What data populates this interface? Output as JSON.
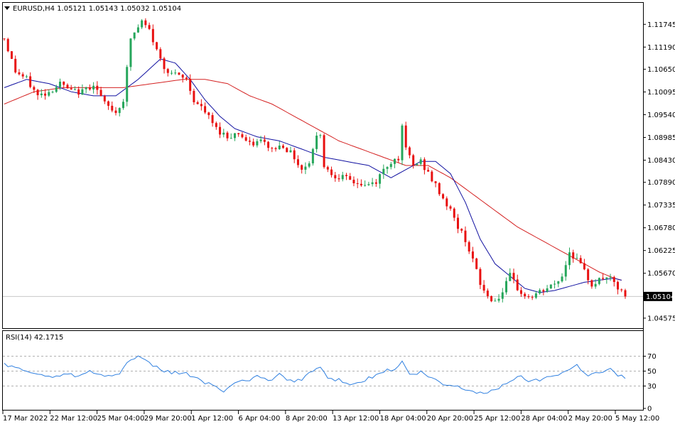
{
  "chart_data": [
    {
      "type": "candlestick",
      "symbol_header": "EURUSD,H4  1.05121 1.05143 1.05032 1.05104",
      "current_price_label": "1.05104",
      "current_price": 1.05104,
      "ylim": [
        1.044,
        1.122
      ],
      "y_ticks": [
        "1.11745",
        "1.11190",
        "1.10650",
        "1.10095",
        "1.09540",
        "1.08985",
        "1.08430",
        "1.07890",
        "1.07335",
        "1.06780",
        "1.06225",
        "1.05670",
        "1.04575"
      ],
      "x_tick_labels": [
        "17 Mar 2022",
        "22 Mar 12:00",
        "25 Mar 04:00",
        "29 Mar 20:00",
        "1 Apr 12:00",
        "6 Apr 04:00",
        "8 Apr 20:00",
        "13 Apr 12:00",
        "18 Apr 04:00",
        "20 Apr 20:00",
        "25 Apr 12:00",
        "28 Apr 04:00",
        "2 May 20:00",
        "5 May 12:00"
      ],
      "colors": {
        "bull": "#26a65b",
        "bear": "#e81010",
        "ma_fast": "#1010a0",
        "ma_slow": "#d42020"
      },
      "price_path": [
        [
          0,
          1.114
        ],
        [
          3,
          1.106
        ],
        [
          6,
          1.104
        ],
        [
          9,
          1.1
        ],
        [
          12,
          1.101
        ],
        [
          15,
          1.103
        ],
        [
          18,
          1.101
        ],
        [
          21,
          1.101
        ],
        [
          24,
          1.103
        ],
        [
          27,
          1.098
        ],
        [
          30,
          1.096
        ],
        [
          32,
          1.099
        ],
        [
          34,
          1.114
        ],
        [
          37,
          1.118
        ],
        [
          39,
          1.116
        ],
        [
          41,
          1.111
        ],
        [
          43,
          1.107
        ],
        [
          46,
          1.105
        ],
        [
          49,
          1.104
        ],
        [
          51,
          1.099
        ],
        [
          54,
          1.096
        ],
        [
          57,
          1.092
        ],
        [
          60,
          1.09
        ],
        [
          63,
          1.091
        ],
        [
          66,
          1.088
        ],
        [
          69,
          1.089
        ],
        [
          72,
          1.087
        ],
        [
          75,
          1.088
        ],
        [
          78,
          1.085
        ],
        [
          80,
          1.082
        ],
        [
          82,
          1.084
        ],
        [
          84,
          1.09
        ],
        [
          85,
          1.091
        ],
        [
          86,
          1.083
        ],
        [
          88,
          1.081
        ],
        [
          91,
          1.08
        ],
        [
          94,
          1.079
        ],
        [
          97,
          1.078
        ],
        [
          100,
          1.079
        ],
        [
          102,
          1.082
        ],
        [
          104,
          1.084
        ],
        [
          106,
          1.085
        ],
        [
          107,
          1.092
        ],
        [
          108,
          1.087
        ],
        [
          110,
          1.083
        ],
        [
          112,
          1.084
        ],
        [
          114,
          1.081
        ],
        [
          116,
          1.078
        ],
        [
          118,
          1.075
        ],
        [
          120,
          1.072
        ],
        [
          122,
          1.068
        ],
        [
          124,
          1.065
        ],
        [
          126,
          1.06
        ],
        [
          128,
          1.054
        ],
        [
          130,
          1.051
        ],
        [
          132,
          1.05
        ],
        [
          134,
          1.052
        ],
        [
          136,
          1.056
        ],
        [
          138,
          1.053
        ],
        [
          140,
          1.051
        ],
        [
          142,
          1.051
        ],
        [
          144,
          1.052
        ],
        [
          146,
          1.053
        ],
        [
          148,
          1.054
        ],
        [
          150,
          1.056
        ],
        [
          152,
          1.062
        ],
        [
          154,
          1.06
        ],
        [
          156,
          1.057
        ],
        [
          158,
          1.054
        ],
        [
          160,
          1.055
        ],
        [
          162,
          1.056
        ],
        [
          164,
          1.054
        ],
        [
          166,
          1.052
        ],
        [
          167,
          1.051
        ]
      ],
      "ma_fast_path": [
        [
          0,
          1.102
        ],
        [
          6,
          1.104
        ],
        [
          12,
          1.103
        ],
        [
          18,
          1.101
        ],
        [
          24,
          1.1
        ],
        [
          30,
          1.1
        ],
        [
          36,
          1.104
        ],
        [
          42,
          1.109
        ],
        [
          46,
          1.108
        ],
        [
          50,
          1.104
        ],
        [
          54,
          1.099
        ],
        [
          58,
          1.095
        ],
        [
          62,
          1.092
        ],
        [
          68,
          1.09
        ],
        [
          74,
          1.089
        ],
        [
          80,
          1.087
        ],
        [
          86,
          1.085
        ],
        [
          92,
          1.084
        ],
        [
          98,
          1.083
        ],
        [
          104,
          1.08
        ],
        [
          108,
          1.082
        ],
        [
          112,
          1.084
        ],
        [
          116,
          1.084
        ],
        [
          120,
          1.081
        ],
        [
          124,
          1.074
        ],
        [
          128,
          1.065
        ],
        [
          132,
          1.059
        ],
        [
          136,
          1.056
        ],
        [
          140,
          1.053
        ],
        [
          144,
          1.052
        ],
        [
          148,
          1.0525
        ],
        [
          152,
          1.0535
        ],
        [
          156,
          1.0545
        ],
        [
          160,
          1.055
        ],
        [
          164,
          1.0555
        ],
        [
          166,
          1.055
        ]
      ],
      "ma_slow_path": [
        [
          0,
          1.098
        ],
        [
          8,
          1.101
        ],
        [
          16,
          1.102
        ],
        [
          24,
          1.102
        ],
        [
          32,
          1.102
        ],
        [
          40,
          1.103
        ],
        [
          48,
          1.104
        ],
        [
          54,
          1.104
        ],
        [
          60,
          1.103
        ],
        [
          66,
          1.1
        ],
        [
          72,
          1.098
        ],
        [
          78,
          1.095
        ],
        [
          84,
          1.092
        ],
        [
          90,
          1.089
        ],
        [
          96,
          1.087
        ],
        [
          102,
          1.085
        ],
        [
          108,
          1.083
        ],
        [
          114,
          1.083
        ],
        [
          120,
          1.08
        ],
        [
          126,
          1.076
        ],
        [
          132,
          1.072
        ],
        [
          138,
          1.068
        ],
        [
          144,
          1.065
        ],
        [
          150,
          1.062
        ],
        [
          156,
          1.059
        ],
        [
          160,
          1.057
        ],
        [
          164,
          1.0555
        ],
        [
          166,
          1.055
        ]
      ]
    },
    {
      "type": "line",
      "indicator_label": "RSI(14) 42.1715",
      "ylim": [
        0,
        100
      ],
      "y_ticks": [
        "70",
        "50",
        "30",
        "0"
      ],
      "levels": [
        70,
        50,
        30
      ],
      "color": "#3080e0",
      "rsi_path": [
        [
          0,
          60
        ],
        [
          4,
          52
        ],
        [
          8,
          48
        ],
        [
          12,
          42
        ],
        [
          16,
          46
        ],
        [
          20,
          44
        ],
        [
          23,
          52
        ],
        [
          26,
          45
        ],
        [
          29,
          42
        ],
        [
          31,
          48
        ],
        [
          33,
          62
        ],
        [
          36,
          68
        ],
        [
          39,
          60
        ],
        [
          42,
          52
        ],
        [
          45,
          48
        ],
        [
          48,
          48
        ],
        [
          51,
          42
        ],
        [
          54,
          35
        ],
        [
          57,
          30
        ],
        [
          59,
          22
        ],
        [
          62,
          32
        ],
        [
          65,
          38
        ],
        [
          68,
          42
        ],
        [
          71,
          38
        ],
        [
          74,
          45
        ],
        [
          77,
          36
        ],
        [
          80,
          40
        ],
        [
          83,
          50
        ],
        [
          85,
          56
        ],
        [
          87,
          40
        ],
        [
          90,
          38
        ],
        [
          93,
          34
        ],
        [
          96,
          36
        ],
        [
          99,
          42
        ],
        [
          102,
          50
        ],
        [
          105,
          52
        ],
        [
          107,
          62
        ],
        [
          109,
          45
        ],
        [
          112,
          48
        ],
        [
          115,
          40
        ],
        [
          118,
          32
        ],
        [
          121,
          30
        ],
        [
          124,
          26
        ],
        [
          127,
          22
        ],
        [
          130,
          20
        ],
        [
          133,
          28
        ],
        [
          136,
          38
        ],
        [
          139,
          42
        ],
        [
          142,
          36
        ],
        [
          145,
          40
        ],
        [
          148,
          45
        ],
        [
          151,
          50
        ],
        [
          154,
          58
        ],
        [
          157,
          45
        ],
        [
          160,
          48
        ],
        [
          163,
          52
        ],
        [
          165,
          44
        ],
        [
          167,
          42
        ]
      ]
    }
  ]
}
